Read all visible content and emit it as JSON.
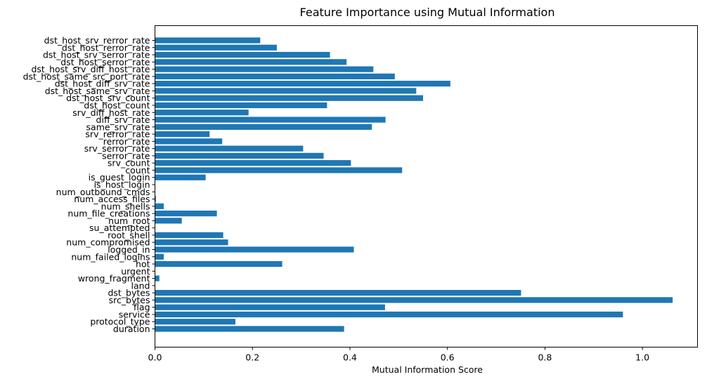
{
  "chart_data": {
    "type": "bar",
    "orientation": "horizontal",
    "title": "Feature Importance using Mutual Information",
    "xlabel": "Mutual Information Score",
    "ylabel": "",
    "xlim": [
      0,
      1.113
    ],
    "xticks": [
      "0.0",
      "0.2",
      "0.4",
      "0.6",
      "0.8",
      "1.0"
    ],
    "grid": false,
    "bar_color": "#1f77b4",
    "categories": [
      "duration",
      "protocol_type",
      "service",
      "flag",
      "src_bytes",
      "dst_bytes",
      "land",
      "wrong_fragment",
      "urgent",
      "hot",
      "num_failed_logins",
      "logged_in",
      "num_compromised",
      "root_shell",
      "su_attempted",
      "num_root",
      "num_file_creations",
      "num_shells",
      "num_access_files",
      "num_outbound_cmds",
      "is_host_login",
      "is_guest_login",
      "count",
      "srv_count",
      "serror_rate",
      "srv_serror_rate",
      "rerror_rate",
      "srv_rerror_rate",
      "same_srv_rate",
      "diff_srv_rate",
      "srv_diff_host_rate",
      "dst_host_count",
      "dst_host_srv_count",
      "dst_host_same_srv_rate",
      "dst_host_diff_srv_rate",
      "dst_host_same_src_port_rate",
      "dst_host_srv_diff_host_rate",
      "dst_host_serror_rate",
      "dst_host_srv_serror_rate",
      "dst_host_rerror_rate",
      "dst_host_srv_rerror_rate"
    ],
    "values": [
      0.388,
      0.165,
      0.96,
      0.472,
      1.062,
      0.751,
      0.0,
      0.009,
      0.0,
      0.261,
      0.018,
      0.408,
      0.15,
      0.14,
      0.0,
      0.055,
      0.127,
      0.018,
      0.002,
      0.0,
      0.0,
      0.104,
      0.507,
      0.402,
      0.346,
      0.304,
      0.138,
      0.112,
      0.445,
      0.473,
      0.192,
      0.353,
      0.55,
      0.536,
      0.606,
      0.492,
      0.448,
      0.393,
      0.359,
      0.25,
      0.216
    ]
  }
}
